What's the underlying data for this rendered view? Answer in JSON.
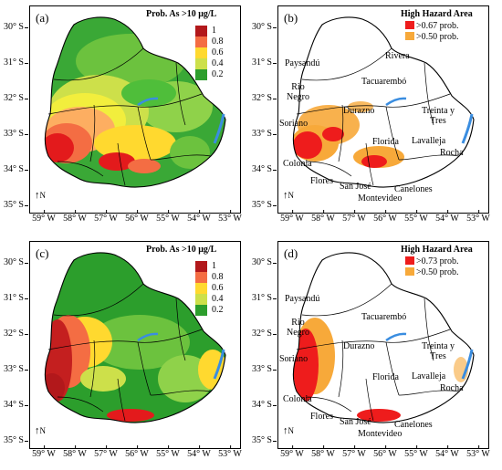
{
  "latitude_ticks": [
    "30° S",
    "31° S",
    "32° S",
    "33° S",
    "34° S",
    "35° S"
  ],
  "longitude_ticks": [
    "59° W",
    "58° W",
    "57° W",
    "56° W",
    "55° W",
    "54° W",
    "53° W"
  ],
  "north_label": "N",
  "probability_legend": {
    "title": "Prob. As >10 μg/L",
    "ticks": [
      "1",
      "0.8",
      "0.6",
      "0.4",
      "0.2"
    ],
    "colors": [
      "#b2181b",
      "#e31a1c",
      "#f46d43",
      "#fdae61",
      "#ffd92f",
      "#f2ee3d",
      "#cde04a",
      "#8fd24a",
      "#4fbe3a",
      "#2c9e2c"
    ]
  },
  "hazard_colors": {
    "high": "#ee1c1c",
    "medium": "#f7a93a"
  },
  "panels": [
    {
      "letter": "(a)",
      "type": "probability"
    },
    {
      "letter": "(b)",
      "type": "hazard",
      "legend_title": "High Hazard Area",
      "legend_items": [
        ">0.67 prob.",
        ">0.50 prob."
      ]
    },
    {
      "letter": "(c)",
      "type": "probability"
    },
    {
      "letter": "(d)",
      "type": "hazard",
      "legend_title": "High Hazard Area",
      "legend_items": [
        ">0.73 prob.",
        ">0.50 prob."
      ]
    }
  ],
  "department_labels": {
    "paysandu": "Paysandú",
    "rivera": "Rivera",
    "tacuarembo": "Tacuarembó",
    "rio_negro_1": "Rio",
    "rio_negro_2": "Negro",
    "durazno": "Durazno",
    "treinta_1": "Treinta y",
    "treinta_2": "Tres",
    "soriano": "Soriano",
    "florida": "Florida",
    "lavalleja": "Lavalleja",
    "rocha": "Rocha",
    "colonia": "Colonia",
    "flores": "Flores",
    "san_jose": "San José",
    "canelones": "Canelones",
    "montevideo": "Montevideo"
  }
}
